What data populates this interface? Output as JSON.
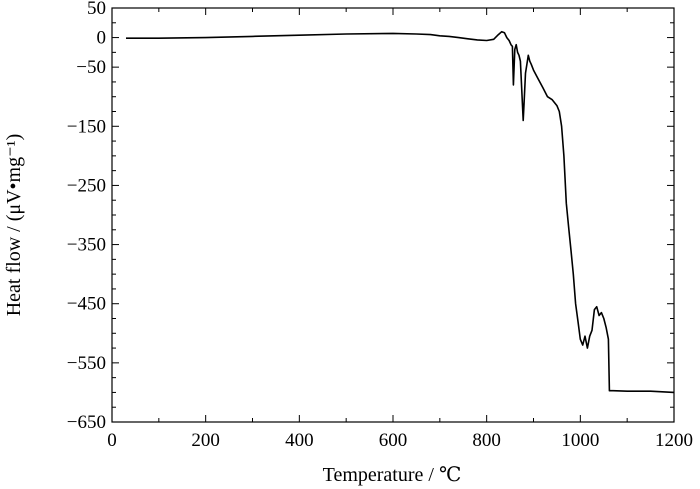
{
  "chart_data": {
    "type": "line",
    "title": "",
    "xlabel": "Temperature / ℃",
    "ylabel": "Heat flow / (μV•mg⁻¹)",
    "xlim": [
      0,
      1200
    ],
    "ylim": [
      -650,
      50
    ],
    "xticks": [
      0,
      200,
      400,
      600,
      800,
      1000,
      1200
    ],
    "yticks": [
      50,
      0,
      -50,
      -150,
      -250,
      -350,
      -450,
      -550,
      -650
    ],
    "xtick_labels": [
      "0",
      "200",
      "400",
      "600",
      "800",
      "1000",
      "1200"
    ],
    "ytick_labels": [
      "50",
      "0",
      "−50",
      "−150",
      "−250",
      "−350",
      "−450",
      "−550",
      "−650"
    ],
    "grid": false,
    "series": [
      {
        "color": "#000000",
        "x": [
          30,
          100,
          200,
          300,
          400,
          500,
          600,
          650,
          680,
          700,
          720,
          740,
          760,
          780,
          800,
          815,
          825,
          832,
          838,
          843,
          848,
          852,
          855,
          857,
          860,
          863,
          866,
          869,
          872,
          875,
          878,
          880,
          883,
          886,
          889,
          892,
          895,
          900,
          910,
          920,
          930,
          940,
          950,
          955,
          960,
          965,
          970,
          975,
          980,
          985,
          990,
          995,
          1000,
          1005,
          1010,
          1015,
          1020,
          1025,
          1030,
          1035,
          1040,
          1045,
          1050,
          1055,
          1060,
          1062,
          1070,
          1100,
          1150,
          1200
        ],
        "y": [
          -1,
          -1,
          0,
          2,
          4,
          6,
          7,
          6,
          5,
          3,
          2,
          0,
          -2,
          -4,
          -5,
          -3,
          5,
          10,
          8,
          0,
          -5,
          -12,
          -15,
          -80,
          -20,
          -12,
          -25,
          -30,
          -40,
          -90,
          -140,
          -110,
          -60,
          -45,
          -30,
          -40,
          -45,
          -55,
          -70,
          -85,
          -100,
          -105,
          -115,
          -125,
          -150,
          -200,
          -280,
          -320,
          -360,
          -400,
          -450,
          -480,
          -510,
          -520,
          -505,
          -525,
          -505,
          -495,
          -460,
          -455,
          -470,
          -465,
          -475,
          -490,
          -510,
          -597,
          -597,
          -598,
          -598,
          -600
        ]
      }
    ]
  }
}
